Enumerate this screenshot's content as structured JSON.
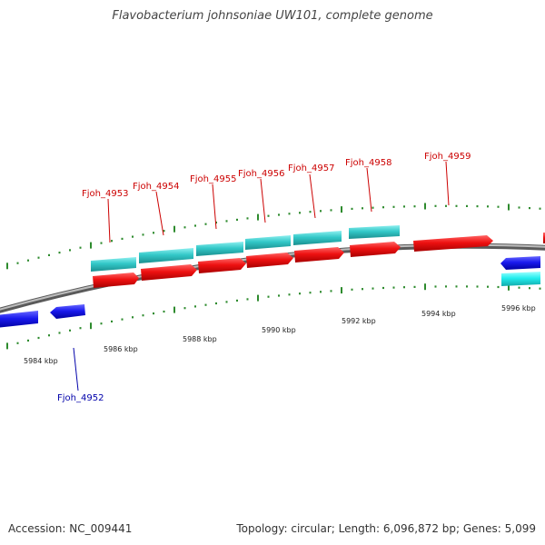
{
  "title": "Flavobacterium johnsoniae UW101, complete genome",
  "footer": {
    "accession": "Accession: NC_009441",
    "stats": "Topology: circular; Length: 6,096,872 bp; Genes: 5,099"
  },
  "colors": {
    "backbone": "#8a8a8a",
    "tick": "#2e8b2e",
    "forward_gene": "#ee1111",
    "forward_cds": "#33cccc",
    "reverse_gene": "#1a1aee",
    "reverse_cds": "#22eeee",
    "forward_label": "#cc0000",
    "reverse_label": "#0000aa"
  },
  "kbp_labels": [
    "5984 kbp",
    "5986 kbp",
    "5988 kbp",
    "5990 kbp",
    "5992 kbp",
    "5994 kbp",
    "5996 kbp"
  ],
  "forward_gene_labels": [
    "Fjoh_4953",
    "Fjoh_4954",
    "Fjoh_4955",
    "Fjoh_4956",
    "Fjoh_4957",
    "Fjoh_4958",
    "Fjoh_4959"
  ],
  "reverse_gene_labels": [
    "Fjoh_4952"
  ]
}
